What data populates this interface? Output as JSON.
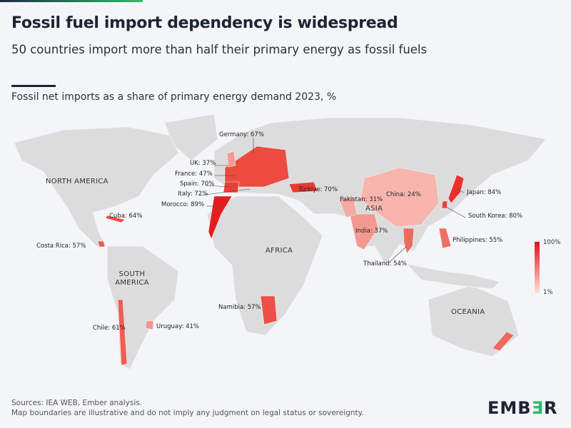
{
  "header": {
    "title": "Fossil fuel import dependency is widespread",
    "subtitle": "50 countries import more than half their primary energy as fossil fuels",
    "chart_title": "Fossil net imports as a share of primary energy demand 2023, %"
  },
  "regions": {
    "north_america": "NORTH AMERICA",
    "south_america": "SOUTH AMERICA",
    "africa": "AFRICA",
    "asia": "ASIA",
    "oceania": "OCEANIA"
  },
  "countries": [
    {
      "name": "Germany",
      "value": 67,
      "label": "Germany: 67%"
    },
    {
      "name": "UK",
      "value": 37,
      "label": "UK: 37%"
    },
    {
      "name": "France",
      "value": 47,
      "label": "France: 47%"
    },
    {
      "name": "Spain",
      "value": 70,
      "label": "Spain: 70%"
    },
    {
      "name": "Italy",
      "value": 72,
      "label": "Italy: 72%"
    },
    {
      "name": "Morocco",
      "value": 89,
      "label": "Morocco: 89%"
    },
    {
      "name": "Türkiye",
      "value": 70,
      "label": "Türkiye: 70%"
    },
    {
      "name": "Pakistan",
      "value": 31,
      "label": "Pakistan: 31%"
    },
    {
      "name": "China",
      "value": 24,
      "label": "China: 24%"
    },
    {
      "name": "Japan",
      "value": 84,
      "label": "Japan: 84%"
    },
    {
      "name": "South Korea",
      "value": 80,
      "label": "South Korea: 80%"
    },
    {
      "name": "India",
      "value": 37,
      "label": "India: 37%"
    },
    {
      "name": "Philippines",
      "value": 55,
      "label": "Philippines: 55%"
    },
    {
      "name": "Thailand",
      "value": 54,
      "label": "Thailand: 54%"
    },
    {
      "name": "Cuba",
      "value": 64,
      "label": "Cuba: 64%"
    },
    {
      "name": "Costa Rica",
      "value": 57,
      "label": "Costa Rica: 57%"
    },
    {
      "name": "Namibia",
      "value": 57,
      "label": "Namibia: 57%"
    },
    {
      "name": "Chile",
      "value": 61,
      "label": "Chile: 61%"
    },
    {
      "name": "Uruguay",
      "value": 41,
      "label": "Uruguay: 41%"
    }
  ],
  "legend": {
    "max": "100%",
    "min": "1%",
    "color_max": "#e8101a",
    "color_min": "#fde0dc",
    "no_data_color": "#dcdcdc"
  },
  "footer": {
    "line1": "Sources: IEA WEB, Ember analysis.",
    "line2": "Map boundaries are illustrative and do not imply any judgment on legal status or sovereignty."
  },
  "logo": {
    "text": "EMBER"
  }
}
